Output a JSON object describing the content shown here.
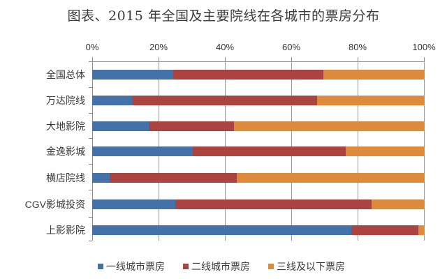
{
  "title": "图表、2015 年全国及主要院线在各城市的票房分布",
  "colors": {
    "tier1": "#4472a8",
    "tier2": "#aa4441",
    "tier3": "#de8a3c"
  },
  "chart_data": {
    "type": "bar",
    "orientation": "horizontal",
    "stacked": "percent",
    "title": "图表、2015 年全国及主要院线在各城市的票房分布",
    "xlabel": "",
    "ylabel": "",
    "xlim": [
      0,
      100
    ],
    "x_ticks": [
      "0%",
      "20%",
      "40%",
      "60%",
      "80%",
      "100%"
    ],
    "x_axis_position": "top",
    "grid": true,
    "legend_position": "bottom",
    "categories": [
      "全国总体",
      "万达院线",
      "大地影院",
      "金逸影城",
      "横店院线",
      "CGV影城投资",
      "上影影院"
    ],
    "series": [
      {
        "name": "一线城市票房",
        "color": "#4472a8",
        "values": [
          24.4,
          12.0,
          17.0,
          30.3,
          5.2,
          25.0,
          78.1
        ]
      },
      {
        "name": "二线城市票房",
        "color": "#aa4441",
        "values": [
          45.3,
          55.8,
          25.8,
          46.1,
          38.4,
          59.2,
          20.2
        ]
      },
      {
        "name": "三线及以下票房",
        "color": "#de8a3c",
        "values": [
          30.3,
          32.2,
          57.2,
          23.6,
          56.4,
          15.8,
          1.7
        ]
      }
    ]
  },
  "axis": {
    "ticks": [
      "0%",
      "20%",
      "40%",
      "60%",
      "80%",
      "100%"
    ]
  },
  "legend": [
    "一线城市票房",
    "二线城市票房",
    "三线及以下票房"
  ]
}
